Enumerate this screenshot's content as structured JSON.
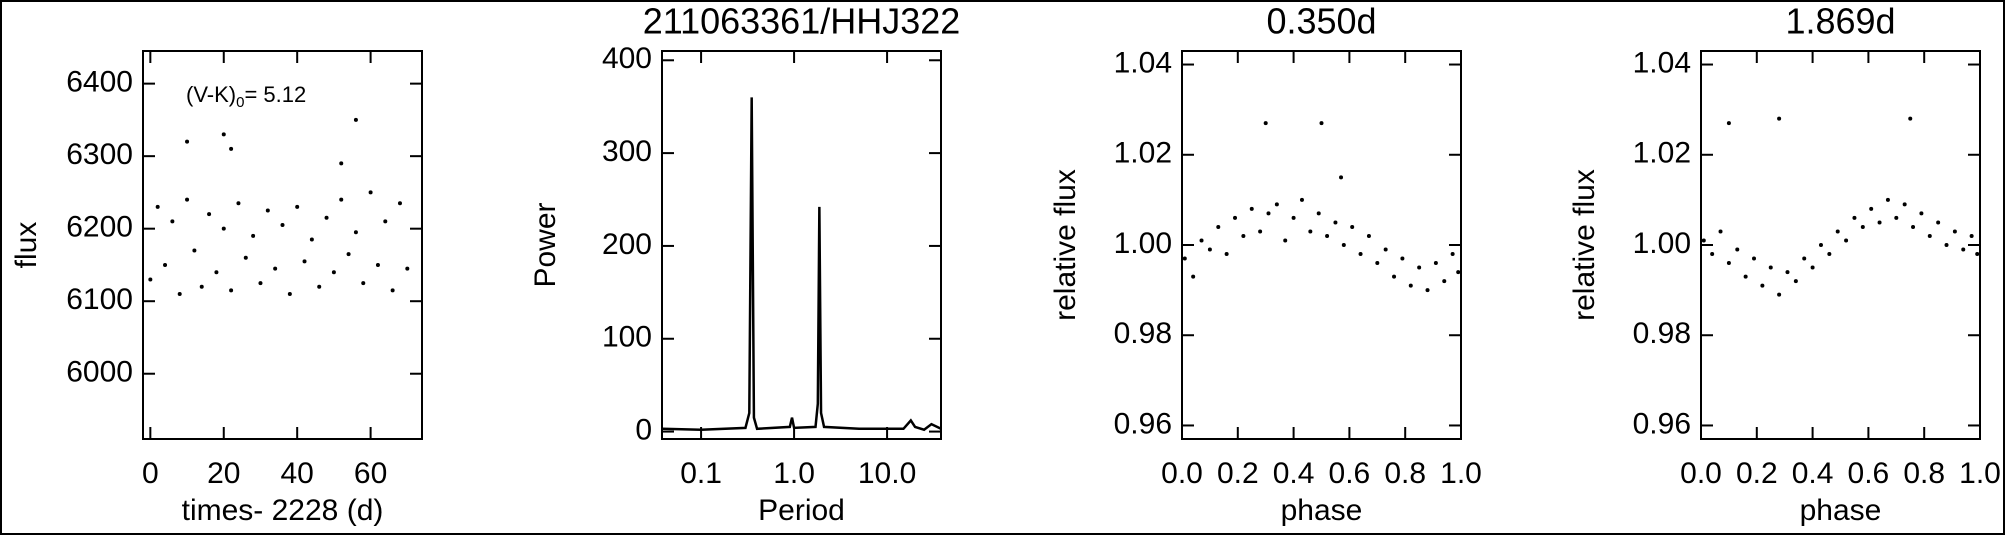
{
  "chart_data": [
    {
      "type": "scatter",
      "xlabel": "times- 2228 (d)",
      "ylabel": "flux",
      "annotation": {
        "prefix": "(V-K)",
        "sub": "0",
        "text": "= 5.12"
      },
      "xlim": [
        -2,
        74
      ],
      "xticks": [
        0,
        20,
        40,
        60
      ],
      "ylim": [
        5910,
        6445
      ],
      "yticks": [
        6000,
        6100,
        6200,
        6300,
        6400
      ],
      "color": "#000000",
      "x": [
        0,
        2,
        4,
        6,
        8,
        10,
        12,
        14,
        16,
        18,
        20,
        22,
        24,
        26,
        28,
        30,
        32,
        34,
        36,
        38,
        40,
        42,
        44,
        46,
        48,
        50,
        52,
        54,
        56,
        58,
        60,
        62,
        64,
        66,
        68,
        70,
        10,
        20,
        22,
        52,
        56
      ],
      "values": [
        6130,
        6230,
        6150,
        6210,
        6110,
        6240,
        6170,
        6120,
        6220,
        6140,
        6200,
        6115,
        6235,
        6160,
        6190,
        6125,
        6225,
        6145,
        6205,
        6110,
        6230,
        6155,
        6185,
        6120,
        6215,
        6140,
        6240,
        6165,
        6195,
        6125,
        6250,
        6150,
        6210,
        6115,
        6235,
        6145,
        6320,
        6330,
        6310,
        6290,
        6350
      ]
    },
    {
      "type": "line",
      "title": "211063361/HHJ322",
      "xlabel": "Period",
      "ylabel": "Power",
      "xlog": true,
      "xlim": [
        0.038,
        38
      ],
      "xticks": [
        0.1,
        {
          "value": 1,
          "label": "1.0"
        },
        {
          "value": 10,
          "label": "10.0"
        }
      ],
      "ylim": [
        -8,
        410
      ],
      "yticks": [
        0,
        100,
        200,
        300,
        400
      ],
      "color": "#000000",
      "x": [
        0.038,
        0.1,
        0.3,
        0.33,
        0.35,
        0.37,
        0.4,
        0.9,
        0.95,
        1.0,
        1.7,
        1.8,
        1.87,
        1.95,
        2.1,
        5,
        15,
        18,
        20,
        25,
        30,
        38
      ],
      "values": [
        3,
        2,
        4,
        20,
        360,
        15,
        3,
        5,
        15,
        4,
        5,
        30,
        242,
        20,
        5,
        3,
        3,
        12,
        5,
        2,
        8,
        3
      ]
    },
    {
      "type": "scatter",
      "title": "0.350d",
      "xlabel": "phase",
      "ylabel": "relative flux",
      "xlim": [
        0,
        1
      ],
      "xticks": [
        {
          "value": 0,
          "label": "0.0"
        },
        0.2,
        0.4,
        0.6,
        0.8,
        {
          "value": 1,
          "label": "1.0"
        }
      ],
      "ylim": [
        0.957,
        1.043
      ],
      "yticks": [
        0.96,
        0.98,
        {
          "value": 1,
          "label": "1.00"
        },
        1.02,
        1.04
      ],
      "color": "#000000",
      "x": [
        0.01,
        0.04,
        0.07,
        0.1,
        0.13,
        0.16,
        0.19,
        0.22,
        0.25,
        0.28,
        0.31,
        0.34,
        0.37,
        0.4,
        0.43,
        0.46,
        0.49,
        0.52,
        0.55,
        0.58,
        0.61,
        0.64,
        0.67,
        0.7,
        0.73,
        0.76,
        0.79,
        0.82,
        0.85,
        0.88,
        0.91,
        0.94,
        0.97,
        0.99,
        0.3,
        0.5,
        0.57
      ],
      "values": [
        0.997,
        0.993,
        1.001,
        0.999,
        1.004,
        0.998,
        1.006,
        1.002,
        1.008,
        1.003,
        1.007,
        1.009,
        1.001,
        1.006,
        1.01,
        1.003,
        1.007,
        1.002,
        1.005,
        1.0,
        1.004,
        0.998,
        1.002,
        0.996,
        0.999,
        0.993,
        0.997,
        0.991,
        0.995,
        0.99,
        0.996,
        0.992,
        0.998,
        0.994,
        1.027,
        1.027,
        1.015
      ]
    },
    {
      "type": "scatter",
      "title": "1.869d",
      "xlabel": "phase",
      "ylabel": "relative flux",
      "xlim": [
        0,
        1
      ],
      "xticks": [
        {
          "value": 0,
          "label": "0.0"
        },
        0.2,
        0.4,
        0.6,
        0.8,
        {
          "value": 1,
          "label": "1.0"
        }
      ],
      "ylim": [
        0.957,
        1.043
      ],
      "yticks": [
        0.96,
        0.98,
        {
          "value": 1,
          "label": "1.00"
        },
        1.02,
        1.04
      ],
      "color": "#000000",
      "x": [
        0.01,
        0.04,
        0.07,
        0.1,
        0.13,
        0.16,
        0.19,
        0.22,
        0.25,
        0.28,
        0.31,
        0.34,
        0.37,
        0.4,
        0.43,
        0.46,
        0.49,
        0.52,
        0.55,
        0.58,
        0.61,
        0.64,
        0.67,
        0.7,
        0.73,
        0.76,
        0.79,
        0.82,
        0.85,
        0.88,
        0.91,
        0.94,
        0.97,
        0.99,
        0.1,
        0.28,
        0.75
      ],
      "values": [
        1.001,
        0.998,
        1.003,
        0.996,
        0.999,
        0.993,
        0.997,
        0.991,
        0.995,
        0.989,
        0.994,
        0.992,
        0.997,
        0.995,
        1.0,
        0.998,
        1.003,
        1.001,
        1.006,
        1.004,
        1.008,
        1.005,
        1.01,
        1.006,
        1.009,
        1.004,
        1.007,
        1.002,
        1.005,
        1.0,
        1.003,
        0.999,
        1.002,
        0.998,
        1.027,
        1.028,
        1.028
      ]
    }
  ]
}
